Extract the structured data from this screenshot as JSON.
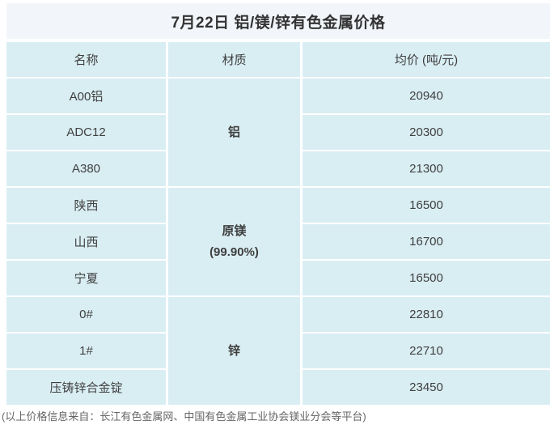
{
  "page": {
    "title": "7月22日 铝/镁/锌有色金属价格",
    "footer": "(以上价格信息来自：长江有色金属网、中国有色金属工业协会镁业分会等平台)"
  },
  "table": {
    "headers": {
      "name": "名称",
      "material": "材质",
      "price": "均价 (吨/元)"
    },
    "groups": [
      {
        "material": "铝",
        "material_note": "",
        "rows": [
          {
            "name": "A00铝",
            "price": "20940"
          },
          {
            "name": "ADC12",
            "price": "20300"
          },
          {
            "name": "A380",
            "price": "21300"
          }
        ]
      },
      {
        "material": "原镁",
        "material_note": "(99.90%)",
        "rows": [
          {
            "name": "陕西",
            "price": "16500"
          },
          {
            "name": "山西",
            "price": "16700"
          },
          {
            "name": "宁夏",
            "price": "16500"
          }
        ]
      },
      {
        "material": "锌",
        "material_note": "",
        "rows": [
          {
            "name": "0#",
            "price": "22810"
          },
          {
            "name": "1#",
            "price": "22710"
          },
          {
            "name": "压铸锌合金锭",
            "price": "23450"
          }
        ]
      }
    ]
  },
  "chart_data": {
    "type": "table",
    "title": "7月22日 铝/镁/锌有色金属价格",
    "columns": [
      "名称",
      "材质",
      "均价 (吨/元)"
    ],
    "rows": [
      [
        "A00铝",
        "铝",
        20940
      ],
      [
        "ADC12",
        "铝",
        20300
      ],
      [
        "A380",
        "铝",
        21300
      ],
      [
        "陕西",
        "原镁 (99.90%)",
        16500
      ],
      [
        "山西",
        "原镁 (99.90%)",
        16700
      ],
      [
        "宁夏",
        "原镁 (99.90%)",
        16500
      ],
      [
        "0#",
        "锌",
        22810
      ],
      [
        "1#",
        "锌",
        22710
      ],
      [
        "压铸锌合金锭",
        "锌",
        23450
      ]
    ],
    "source_note": "(以上价格信息来自：长江有色金属网、中国有色金属工业协会镁业分会等平台)"
  },
  "colors": {
    "cell_bg": "#d9eef3",
    "title_band_bg": "#f2f5fa",
    "title_text": "#333333",
    "body_text": "#3f3f3f",
    "footer_text": "#666666"
  }
}
